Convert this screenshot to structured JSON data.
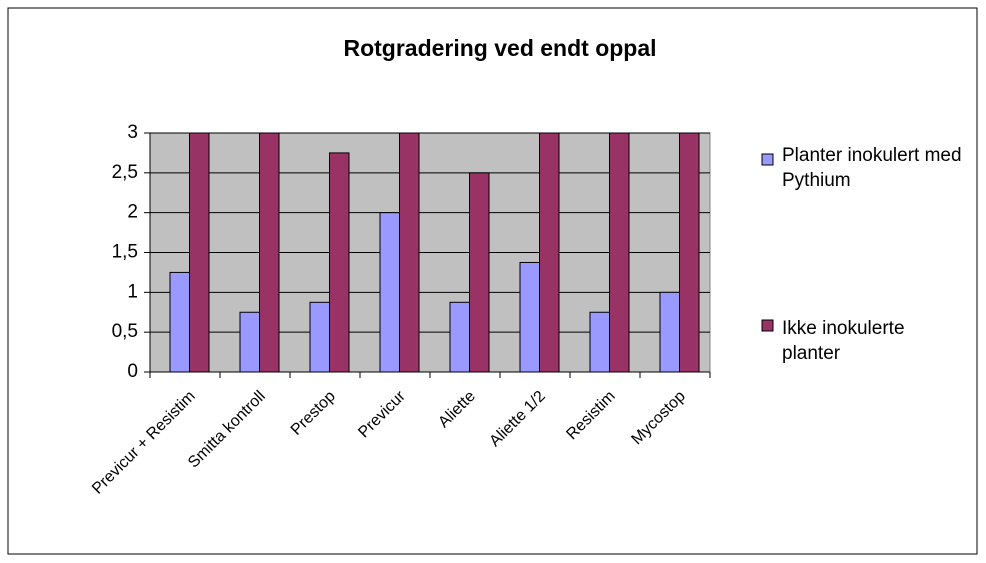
{
  "chart_data": {
    "type": "bar",
    "title": "Rotgradering ved endt oppal",
    "categories": [
      "Previcur + Resistim",
      "Smitta kontroll",
      "Prestop",
      "Previcur",
      "Aliette",
      "Aliette 1/2",
      "Resistim",
      "Mycostop"
    ],
    "series": [
      {
        "name": "Planter inokulert med Pythium",
        "color": "#9999ff",
        "values": [
          1.25,
          0.75,
          0.875,
          2,
          0.875,
          1.375,
          0.75,
          1
        ]
      },
      {
        "name": "Ikke inokulerte planter",
        "color": "#993366",
        "values": [
          3,
          3,
          2.75,
          3,
          2.5,
          3,
          3,
          3
        ]
      }
    ],
    "ylim": [
      0,
      3
    ],
    "yticks": [
      0,
      {
        "value": 0.5,
        "label": "0,5"
      },
      1,
      {
        "value": 1.5,
        "label": "1,5"
      },
      2,
      {
        "value": 2.5,
        "label": "2,5"
      },
      3
    ],
    "grid": true,
    "legend": "right"
  }
}
